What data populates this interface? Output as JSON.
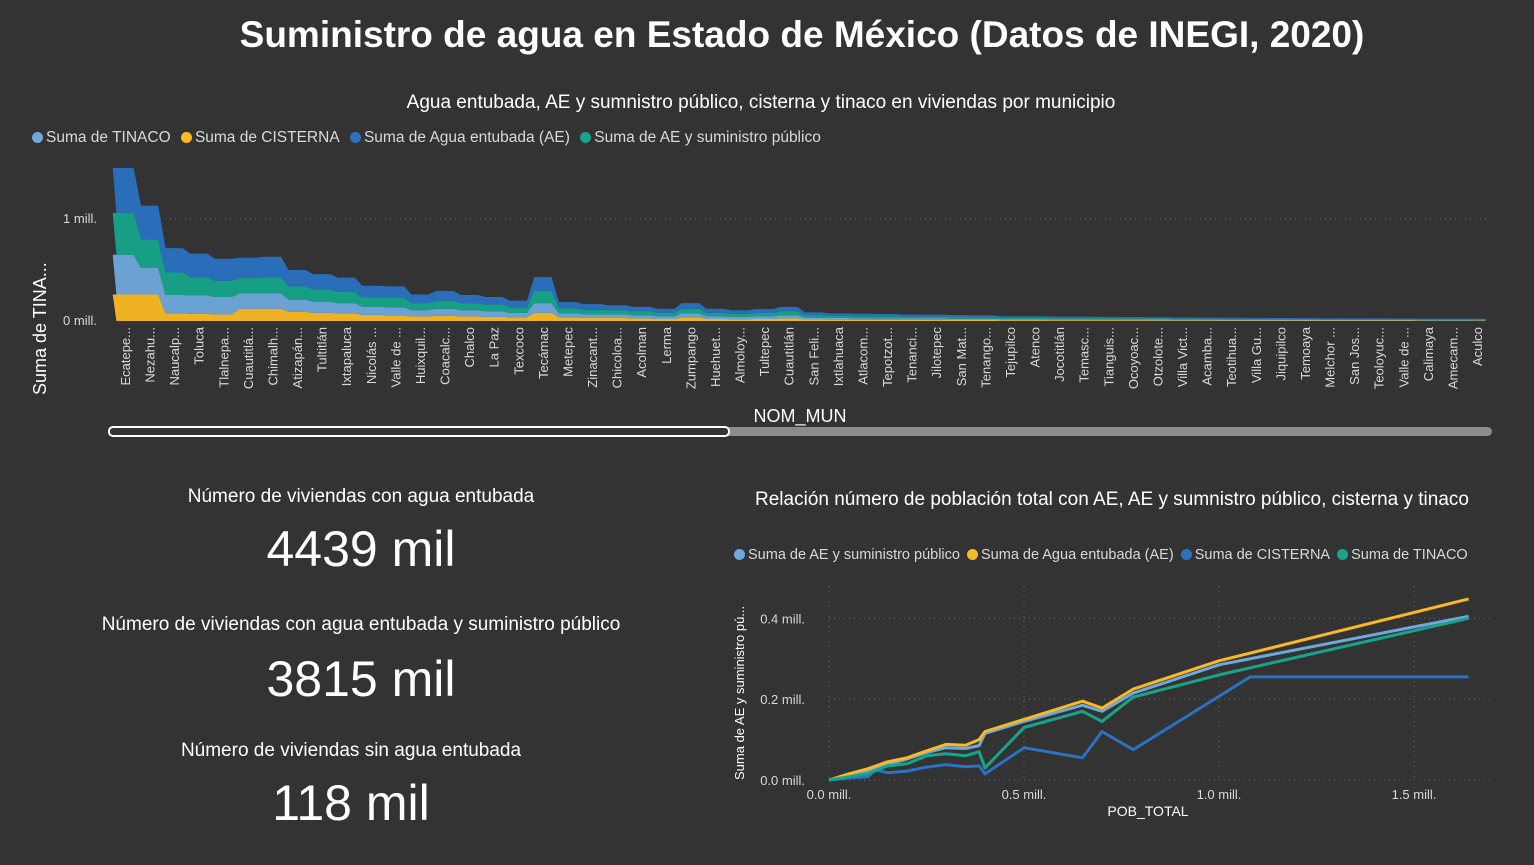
{
  "title": "Suministro de agua en Estado de México (Datos de INEGI, 2020)",
  "colors": {
    "tinaco": "#6fa8dc",
    "cisterna": "#f9b924",
    "ae": "#2a72c2",
    "ae_sp": "#16a58b"
  },
  "kpis": [
    {
      "label": "Número de viviendas con agua entubada",
      "value": "4439 mil"
    },
    {
      "label": "Número de viviendas con agua entubada y suministro público",
      "value": "3815 mil"
    },
    {
      "label": "Número de viviendas sin agua entubada",
      "value": "118 mil"
    }
  ],
  "chart_data": [
    {
      "type": "area",
      "stacked": true,
      "title": "Agua entubada, AE y sumnistro público, cisterna y tinaco en viviendas por municipio",
      "xlabel": "NOM_MUN",
      "ylabel": "Suma de TINA...",
      "legend": [
        "Suma de TINACO",
        "Suma de CISTERNA",
        "Suma de Agua entubada (AE)",
        "Suma de AE y suministro público"
      ],
      "legend_placement": "top-left",
      "grid": true,
      "ylim": [
        0,
        1500000
      ],
      "yticks": [
        {
          "value": 0,
          "label": "0 mill."
        },
        {
          "value": 1000000,
          "label": "1 mill."
        }
      ],
      "categories": [
        "Ecatepe...",
        "Nezahu...",
        "Naucalp...",
        "Toluca",
        "Tlalnepa...",
        "Cuautitlá...",
        "Chimalh...",
        "Atizapán...",
        "Tultitlán",
        "Ixtapaluca",
        "Nicolás ...",
        "Valle de ...",
        "Huixquil...",
        "Coacalc...",
        "Chalco",
        "La Paz",
        "Texcoco",
        "Tecámac",
        "Metepec",
        "Zinacant...",
        "Chicoloa...",
        "Acolman",
        "Lerma",
        "Zumpango",
        "Huehuet...",
        "Almoloy...",
        "Tultepec",
        "Cuautitlán",
        "San Feli...",
        "Ixtlahuaca",
        "Atlacom...",
        "Tepotzot...",
        "Tenanci...",
        "Jilotepec",
        "San Mat...",
        "Tenango...",
        "Tejupilco",
        "Atenco",
        "Jocotitlán",
        "Temasc...",
        "Tianguis...",
        "Ocoyoac...",
        "Otzolote...",
        "Villa Vict...",
        "Acamba...",
        "Teotihua...",
        "Villa Gu...",
        "Jiquipilco",
        "Temoaya",
        "Melchor ...",
        "San Jos...",
        "Teoloyuc...",
        "Valle de ...",
        "Calimaya",
        "Amecam...",
        "Aculco"
      ],
      "series": [
        {
          "name": "Suma de TINACO",
          "values": [
            390000,
            260000,
            180000,
            180000,
            170000,
            150000,
            150000,
            120000,
            110000,
            100000,
            80000,
            80000,
            60000,
            70000,
            60000,
            55000,
            45000,
            95000,
            40000,
            35000,
            35000,
            30000,
            25000,
            40000,
            25000,
            22000,
            25000,
            30000,
            18000,
            16000,
            15000,
            15000,
            13000,
            13000,
            12000,
            12000,
            10000,
            10000,
            9000,
            9000,
            9000,
            8500,
            8000,
            7500,
            7000,
            7000,
            6500,
            6500,
            6000,
            6000,
            5500,
            5500,
            5000,
            5000,
            5000,
            4500
          ]
        },
        {
          "name": "Suma de CISTERNA",
          "values": [
            260000,
            260000,
            75000,
            70000,
            65000,
            120000,
            120000,
            90000,
            80000,
            75000,
            60000,
            55000,
            45000,
            50000,
            45000,
            40000,
            35000,
            80000,
            35000,
            30000,
            30000,
            25000,
            20000,
            35000,
            20000,
            18000,
            20000,
            25000,
            15000,
            13000,
            12000,
            12000,
            11000,
            11000,
            10000,
            10000,
            8000,
            8000,
            7500,
            7500,
            7000,
            7000,
            6500,
            6000,
            6000,
            5500,
            5500,
            5000,
            5000,
            5000,
            4500,
            4500,
            4500,
            4000,
            4000,
            4000
          ]
        },
        {
          "name": "Suma de Agua entubada (AE)",
          "values": [
            440000,
            330000,
            240000,
            230000,
            215000,
            200000,
            200000,
            160000,
            150000,
            140000,
            115000,
            110000,
            85000,
            95000,
            80000,
            75000,
            65000,
            135000,
            60000,
            55000,
            50000,
            45000,
            40000,
            55000,
            40000,
            35000,
            38000,
            45000,
            28000,
            25000,
            24000,
            23000,
            21000,
            20000,
            19000,
            18000,
            16000,
            15000,
            14000,
            14000,
            13000,
            13000,
            12000,
            11000,
            11000,
            10500,
            10000,
            10000,
            9500,
            9000,
            9000,
            8500,
            8000,
            8000,
            7500,
            7000
          ]
        },
        {
          "name": "Suma de AE y suministro público",
          "values": [
            410000,
            280000,
            220000,
            180000,
            160000,
            150000,
            160000,
            130000,
            120000,
            110000,
            90000,
            95000,
            70000,
            80000,
            70000,
            65000,
            55000,
            120000,
            50000,
            45000,
            40000,
            38000,
            35000,
            45000,
            35000,
            30000,
            33000,
            38000,
            24000,
            21000,
            20000,
            19000,
            17000,
            17000,
            16000,
            15000,
            13000,
            13000,
            12000,
            12000,
            11000,
            11000,
            10000,
            9500,
            9000,
            9000,
            8500,
            8500,
            8000,
            7500,
            7500,
            7000,
            7000,
            6500,
            6500,
            6000
          ]
        }
      ]
    },
    {
      "type": "line",
      "title": "Relación número de población total con AE, AE y sumnistro público, cisterna y tinaco",
      "xlabel": "POB_TOTAL",
      "ylabel": "Suma de AE y suministro pú...",
      "legend": [
        "Suma de AE y suministro público",
        "Suma de Agua entubada (AE)",
        "Suma de CISTERNA",
        "Suma de TINACO"
      ],
      "legend_placement": "top",
      "grid": true,
      "xlim": [
        0,
        1700000
      ],
      "ylim": [
        0,
        480000
      ],
      "xticks": [
        {
          "value": 0,
          "label": "0.0 mill."
        },
        {
          "value": 500000,
          "label": "0.5 mill."
        },
        {
          "value": 1000000,
          "label": "1.0 mill."
        },
        {
          "value": 1500000,
          "label": "1.5 mill."
        }
      ],
      "yticks": [
        {
          "value": 0,
          "label": "0.0 mill."
        },
        {
          "value": 200000,
          "label": "0.2 mill."
        },
        {
          "value": 400000,
          "label": "0.4 mill."
        }
      ],
      "series": [
        {
          "name": "Suma de AE y suministro público",
          "points": [
            [
              0,
              0
            ],
            [
              50000,
              12000
            ],
            [
              100000,
              22000
            ],
            [
              150000,
              38000
            ],
            [
              200000,
              52000
            ],
            [
              250000,
              68000
            ],
            [
              300000,
              80000
            ],
            [
              350000,
              78000
            ],
            [
              385000,
              85000
            ],
            [
              400000,
              115000
            ],
            [
              500000,
              145000
            ],
            [
              650000,
              185000
            ],
            [
              700000,
              170000
            ],
            [
              780000,
              215000
            ],
            [
              1000000,
              285000
            ],
            [
              1640000,
              405000
            ]
          ]
        },
        {
          "name": "Suma de Agua entubada (AE)",
          "points": [
            [
              0,
              0
            ],
            [
              50000,
              15000
            ],
            [
              100000,
              28000
            ],
            [
              150000,
              45000
            ],
            [
              200000,
              55000
            ],
            [
              250000,
              72000
            ],
            [
              300000,
              88000
            ],
            [
              350000,
              86000
            ],
            [
              385000,
              100000
            ],
            [
              400000,
              120000
            ],
            [
              500000,
              150000
            ],
            [
              650000,
              195000
            ],
            [
              700000,
              178000
            ],
            [
              780000,
              225000
            ],
            [
              1000000,
              295000
            ],
            [
              1640000,
              448000
            ]
          ]
        },
        {
          "name": "Suma de CISTERNA",
          "points": [
            [
              0,
              0
            ],
            [
              50000,
              5000
            ],
            [
              100000,
              8000
            ],
            [
              120000,
              25000
            ],
            [
              150000,
              18000
            ],
            [
              200000,
              22000
            ],
            [
              250000,
              32000
            ],
            [
              300000,
              38000
            ],
            [
              350000,
              33000
            ],
            [
              385000,
              35000
            ],
            [
              400000,
              15000
            ],
            [
              500000,
              80000
            ],
            [
              650000,
              55000
            ],
            [
              700000,
              120000
            ],
            [
              780000,
              75000
            ],
            [
              1080000,
              255000
            ],
            [
              1640000,
              255000
            ]
          ]
        },
        {
          "name": "Suma de TINACO",
          "points": [
            [
              0,
              0
            ],
            [
              50000,
              8000
            ],
            [
              100000,
              16000
            ],
            [
              150000,
              35000
            ],
            [
              200000,
              40000
            ],
            [
              250000,
              60000
            ],
            [
              300000,
              65000
            ],
            [
              350000,
              60000
            ],
            [
              385000,
              70000
            ],
            [
              400000,
              30000
            ],
            [
              500000,
              130000
            ],
            [
              650000,
              170000
            ],
            [
              700000,
              145000
            ],
            [
              780000,
              205000
            ],
            [
              1000000,
              260000
            ],
            [
              1640000,
              400000
            ]
          ]
        }
      ]
    }
  ]
}
